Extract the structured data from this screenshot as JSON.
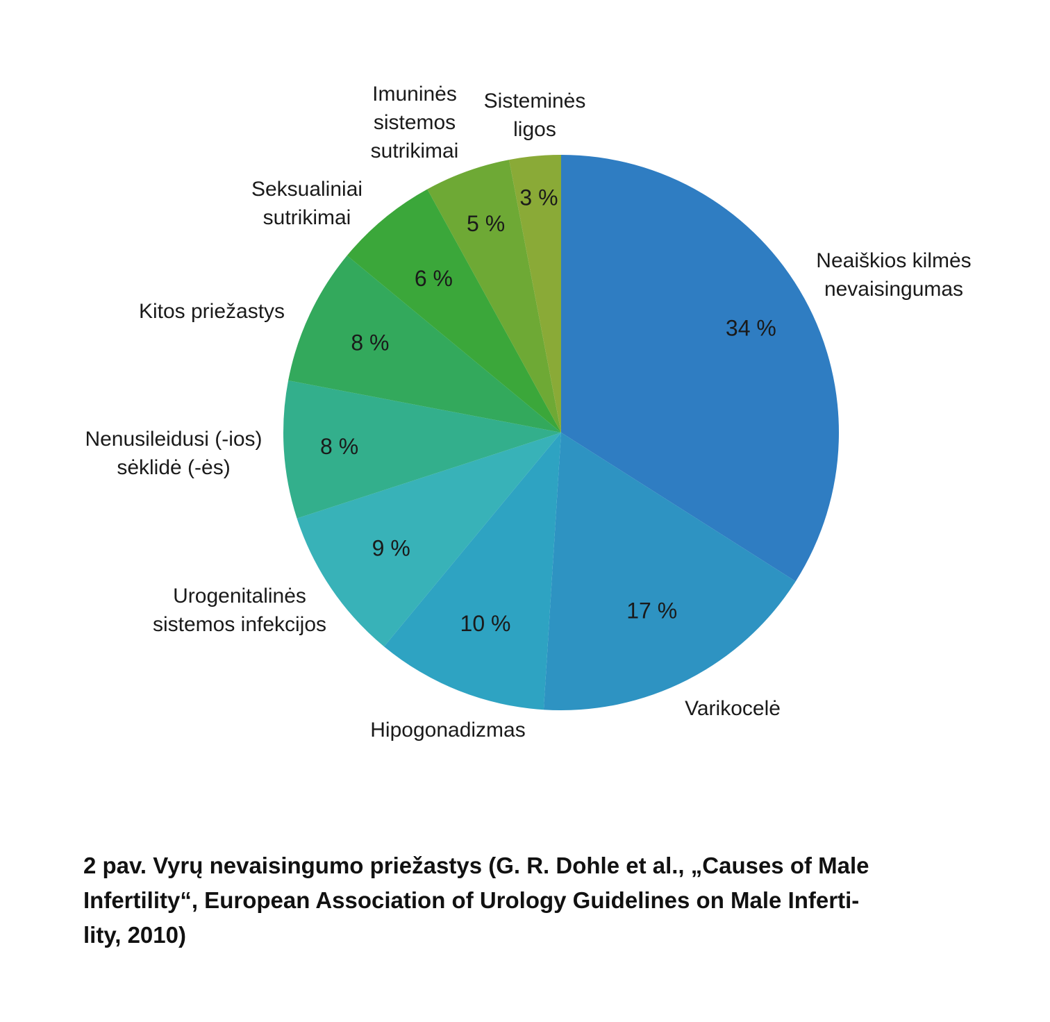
{
  "chart_data": {
    "type": "pie",
    "start": "12 o'clock, clockwise",
    "slices": [
      {
        "label": [
          "Neaiškios kilmės",
          "nevaisingumas"
        ],
        "value": 34,
        "value_label": "34 %",
        "color": "#2F7DC2"
      },
      {
        "label": [
          "Varikocelė"
        ],
        "value": 17,
        "value_label": "17 %",
        "color": "#2E93C2"
      },
      {
        "label": [
          "Hipogonadizmas"
        ],
        "value": 10,
        "value_label": "10 %",
        "color": "#2EA3C2"
      },
      {
        "label": [
          "Urogenitalinės",
          "sistemos infekcijos"
        ],
        "value": 9,
        "value_label": "9 %",
        "color": "#38B2B8"
      },
      {
        "label": [
          "Nenusileidusi (-ios)",
          "sėklidė (-ės)"
        ],
        "value": 8,
        "value_label": "8 %",
        "color": "#33AF8C"
      },
      {
        "label": [
          "Kitos priežastys"
        ],
        "value": 8,
        "value_label": "8 %",
        "color": "#33A95C"
      },
      {
        "label": [
          "Seksualiniai",
          "sutrikimai"
        ],
        "value": 6,
        "value_label": "6 %",
        "color": "#3BA73A"
      },
      {
        "label": [
          "Imuninės",
          "sistemos",
          "sutrikimai"
        ],
        "value": 5,
        "value_label": "5 %",
        "color": "#6EA935"
      },
      {
        "label": [
          "Sisteminės",
          "ligos"
        ],
        "value": 3,
        "value_label": "3 %",
        "color": "#8AAA37"
      }
    ]
  },
  "caption": {
    "lines": [
      "2 pav. Vyrų nevaisingumo priežastys (G. R. Dohle et al., „Causes of Male",
      "Infertility“, European Association of Urology Guidelines on Male Inferti-",
      "lity, 2010)"
    ]
  }
}
